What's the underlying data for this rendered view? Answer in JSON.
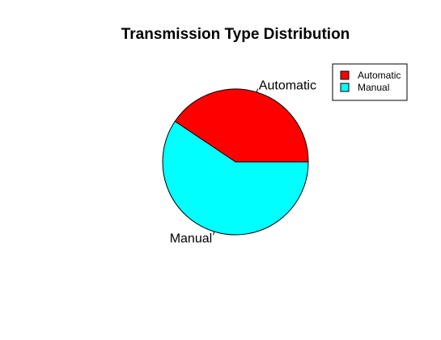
{
  "chart_data": {
    "type": "pie",
    "title": "Transmission Type Distribution",
    "labels": [
      "Automatic",
      "Manual"
    ],
    "values": [
      40.6,
      59.4
    ],
    "colors": [
      "#FF0000",
      "#00FFFF"
    ],
    "start_direction": "counterclockwise from 3 o'clock",
    "legend": {
      "position": "top-right",
      "entries": [
        "Automatic",
        "Manual"
      ]
    }
  }
}
